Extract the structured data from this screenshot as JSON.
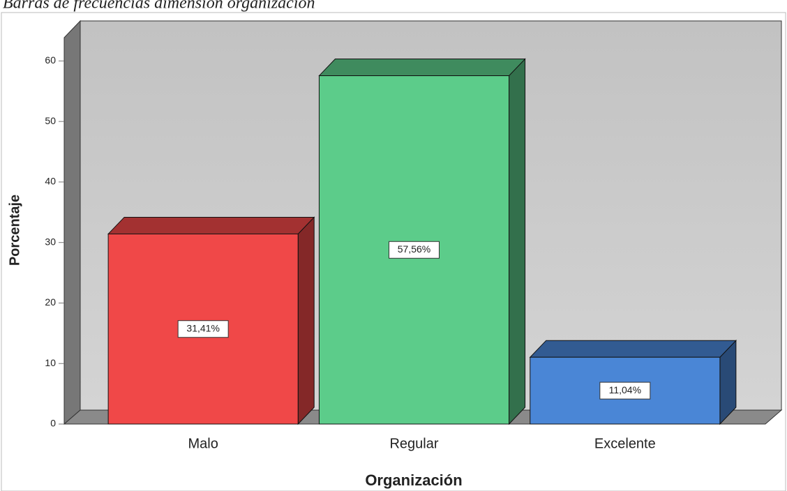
{
  "chart_data": {
    "type": "bar3d",
    "title": "Barras de frecuencias dimensión organización",
    "x_label": "Organización",
    "y_label": "Porcentaje",
    "categories": [
      "Malo",
      "Regular",
      "Excelente"
    ],
    "values": [
      31.41,
      57.56,
      11.04
    ],
    "value_labels": [
      "31,41%",
      "57,56%",
      "11,04%"
    ],
    "colors": [
      "#f04848",
      "#5ccc8a",
      "#4a86d6"
    ],
    "ylim": [
      0,
      65
    ],
    "yticks": [
      0,
      10,
      20,
      30,
      40,
      50,
      60
    ]
  }
}
